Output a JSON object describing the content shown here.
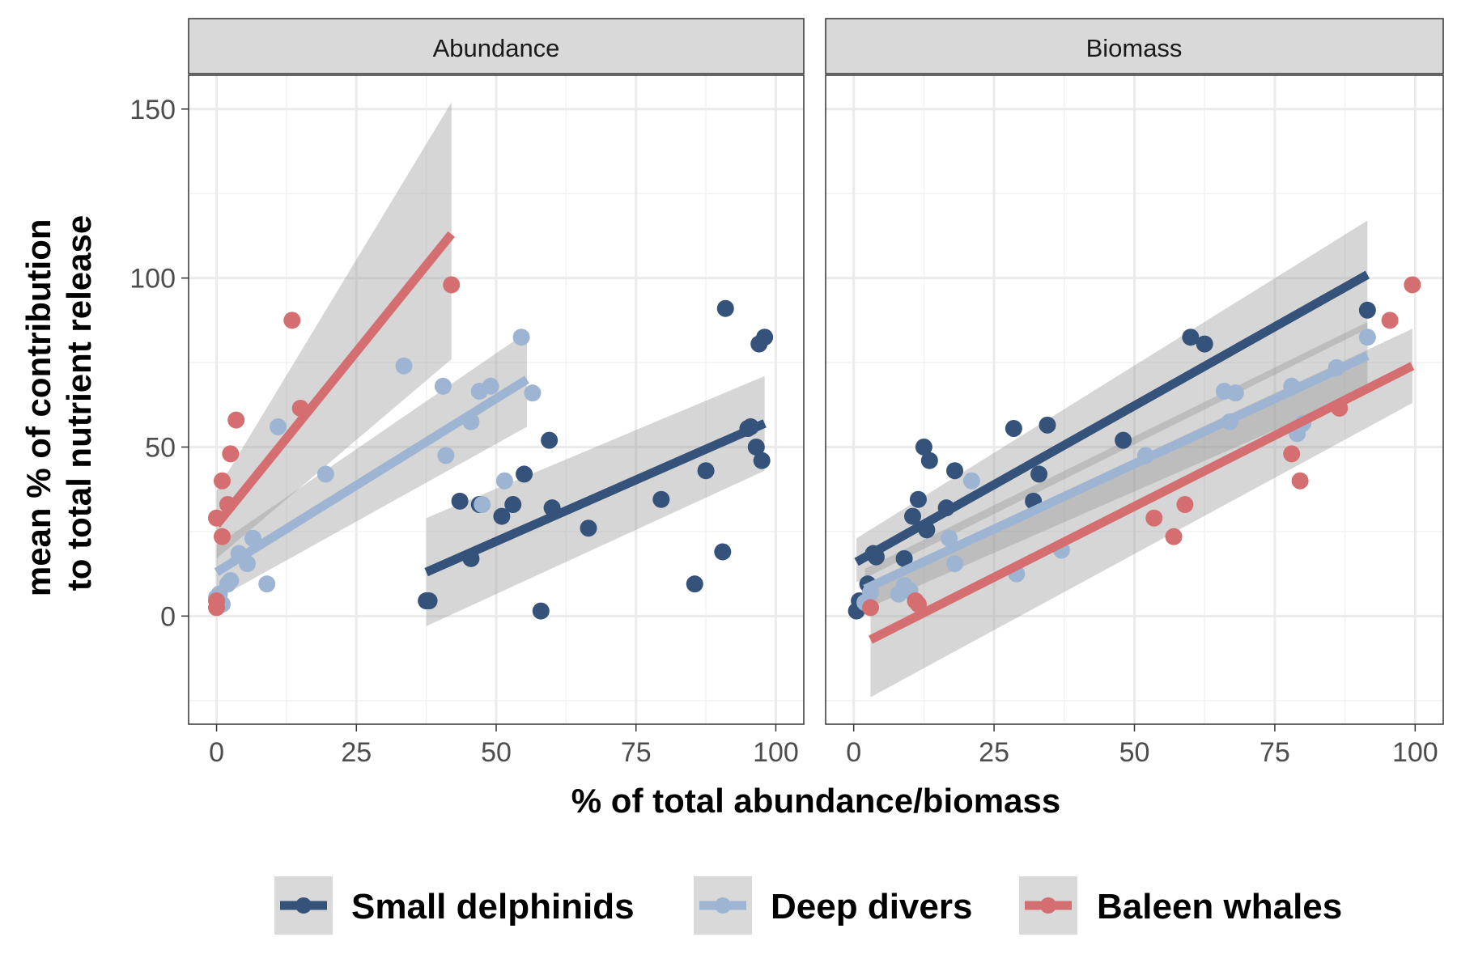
{
  "chart_data": {
    "type": "scatter",
    "facets": [
      "Abundance",
      "Biomass"
    ],
    "xlabel": "% of total abundance/biomass",
    "ylabel": [
      "mean % of contribution",
      "to total nutrient release"
    ],
    "xlim": [
      -5,
      105
    ],
    "ylim": [
      -32,
      160
    ],
    "x_ticks": [
      0,
      25,
      50,
      75,
      100
    ],
    "x_tick_labels": [
      "0",
      "25",
      "50",
      "75",
      "100"
    ],
    "y_ticks": [
      0,
      50,
      100,
      150
    ],
    "y_tick_labels": [
      "0",
      "50",
      "100",
      "150"
    ],
    "grid": true,
    "legend_position": "bottom",
    "series": [
      {
        "name": "Small delphinids",
        "color": "#34527a",
        "panels": {
          "Abundance": {
            "points": [
              [
                37.5,
                4.5
              ],
              [
                38,
                4.5
              ],
              [
                43.5,
                34
              ],
              [
                45.5,
                17
              ],
              [
                47,
                33
              ],
              [
                51,
                29.5
              ],
              [
                53,
                33
              ],
              [
                55,
                42
              ],
              [
                58,
                1.5
              ],
              [
                59.5,
                52
              ],
              [
                60,
                32
              ],
              [
                66.5,
                26
              ],
              [
                79.5,
                34.5
              ],
              [
                85.5,
                9.5
              ],
              [
                87.5,
                43
              ],
              [
                90.5,
                19
              ],
              [
                91,
                91
              ],
              [
                95,
                55.5
              ],
              [
                95.5,
                56
              ],
              [
                96.5,
                50
              ],
              [
                97,
                80.5
              ],
              [
                97.5,
                46
              ],
              [
                98,
                82.5
              ]
            ],
            "fit": {
              "x": [
                37.5,
                98
              ],
              "y": [
                13,
                57
              ],
              "ci_lower": [
                -3,
                43
              ],
              "ci_upper": [
                29,
                71
              ]
            }
          },
          "Biomass": {
            "points": [
              [
                0.5,
                1.5
              ],
              [
                1,
                4.5
              ],
              [
                2.5,
                9.5
              ],
              [
                3.5,
                18.5
              ],
              [
                4,
                17.5
              ],
              [
                9,
                17
              ],
              [
                10.5,
                29.5
              ],
              [
                11.5,
                34.5
              ],
              [
                12.5,
                50
              ],
              [
                13,
                25.5
              ],
              [
                13.5,
                46
              ],
              [
                16.5,
                32
              ],
              [
                18,
                43
              ],
              [
                28.5,
                55.5
              ],
              [
                32,
                34
              ],
              [
                33,
                42
              ],
              [
                34.5,
                56.5
              ],
              [
                48,
                52
              ],
              [
                60,
                82.5
              ],
              [
                62.5,
                80.5
              ],
              [
                91.5,
                90.5
              ]
            ],
            "fit": {
              "x": [
                0.5,
                91.5
              ],
              "y": [
                16,
                101
              ],
              "ci_lower": [
                10,
                85
              ],
              "ci_upper": [
                23,
                117
              ]
            }
          }
        }
      },
      {
        "name": "Deep divers",
        "color": "#9db5d2",
        "panels": {
          "Abundance": {
            "points": [
              [
                0,
                5.5
              ],
              [
                0.5,
                6.5
              ],
              [
                1,
                3.5
              ],
              [
                2,
                9.5
              ],
              [
                2.5,
                10.5
              ],
              [
                4,
                18.5
              ],
              [
                5.5,
                15.5
              ],
              [
                6.5,
                23
              ],
              [
                9,
                9.5
              ],
              [
                11,
                56
              ],
              [
                19.5,
                42
              ],
              [
                33.5,
                74
              ],
              [
                40.5,
                68
              ],
              [
                41,
                47.5
              ],
              [
                45.5,
                57.5
              ],
              [
                47,
                66.5
              ],
              [
                47.5,
                33
              ],
              [
                49,
                68
              ],
              [
                51.5,
                40
              ],
              [
                54.5,
                82.5
              ],
              [
                56.5,
                66
              ]
            ],
            "fit": {
              "x": [
                0,
                55.5
              ],
              "y": [
                13,
                70
              ],
              "ci_lower": [
                5,
                56
              ],
              "ci_upper": [
                21,
                84
              ]
            }
          },
          "Biomass": {
            "points": [
              [
                2,
                4
              ],
              [
                3,
                7
              ],
              [
                8,
                6.5
              ],
              [
                9,
                9
              ],
              [
                10,
                7.5
              ],
              [
                11,
                4.5
              ],
              [
                17,
                23
              ],
              [
                18,
                15.5
              ],
              [
                21,
                40
              ],
              [
                29,
                12.5
              ],
              [
                37,
                19.5
              ],
              [
                52,
                47.5
              ],
              [
                66,
                66.5
              ],
              [
                67,
                57.5
              ],
              [
                68,
                66
              ],
              [
                78,
                68
              ],
              [
                79,
                54
              ],
              [
                80,
                57
              ],
              [
                86,
                73.5
              ],
              [
                91.5,
                82.5
              ]
            ],
            "fit": {
              "x": [
                2,
                91.5
              ],
              "y": [
                8,
                77
              ],
              "ci_lower": [
                2,
                67
              ],
              "ci_upper": [
                14,
                87
              ]
            }
          }
        }
      },
      {
        "name": "Baleen whales",
        "color": "#d56e70",
        "panels": {
          "Abundance": {
            "points": [
              [
                0,
                2.5
              ],
              [
                0,
                4.5
              ],
              [
                0,
                29
              ],
              [
                1,
                23.5
              ],
              [
                1,
                40
              ],
              [
                2,
                33
              ],
              [
                2.5,
                48
              ],
              [
                3.5,
                58
              ],
              [
                13.5,
                87.5
              ],
              [
                15,
                61.5
              ],
              [
                42,
                98
              ]
            ],
            "fit": {
              "x": [
                0,
                42
              ],
              "y": [
                27,
                113
              ],
              "ci_lower": [
                17,
                76
              ],
              "ci_upper": [
                37,
                152
              ]
            }
          },
          "Biomass": {
            "points": [
              [
                3,
                2.5
              ],
              [
                11,
                4.5
              ],
              [
                11.5,
                3.5
              ],
              [
                53.5,
                29
              ],
              [
                57,
                23.5
              ],
              [
                59,
                33
              ],
              [
                78,
                48
              ],
              [
                79.5,
                40
              ],
              [
                86.5,
                61.5
              ],
              [
                95.5,
                87.5
              ],
              [
                99.5,
                98
              ]
            ],
            "fit": {
              "x": [
                3,
                99.5
              ],
              "y": [
                -7,
                74
              ],
              "ci_lower": [
                -24,
                63
              ],
              "ci_upper": [
                10,
                85
              ]
            }
          }
        }
      }
    ]
  }
}
